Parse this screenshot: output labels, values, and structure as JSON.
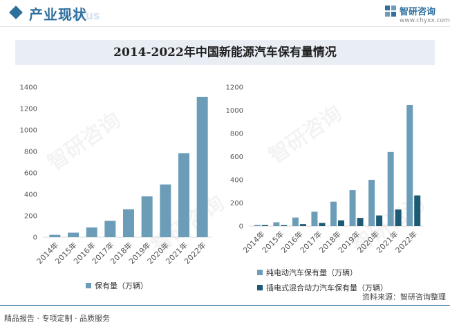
{
  "header": {
    "title": "产业现状",
    "ghost_text": "Status",
    "logo_name": "智研咨询",
    "logo_url": "www.chyxx.com"
  },
  "source": "资料来源：智研咨询整理",
  "footer": {
    "tagline": "精品报告 · 专项定制 · 品质服务"
  },
  "colors": {
    "primary": "#2e6f9e",
    "bar_light": "#6c9db8",
    "bar_dark": "#1d5a73"
  },
  "watermark": "智研咨询",
  "chart_data": [
    {
      "type": "bar",
      "title": "2014-2022年中国新能源汽车保有量情况",
      "categories": [
        "2014年",
        "2015年",
        "2016年",
        "2017年",
        "2018年",
        "2019年",
        "2020年",
        "2021年",
        "2022年"
      ],
      "series": [
        {
          "name": "保有量（万辆）",
          "values": [
            22,
            42,
            91,
            153,
            261,
            381,
            492,
            784,
            1310
          ],
          "color": "#6c9db8"
        }
      ],
      "ylim": [
        0,
        1400
      ],
      "yticks": [
        "0",
        "200",
        "400",
        "600",
        "800",
        "1000",
        "1200",
        "1400"
      ],
      "grid": false,
      "legend": "bottom"
    },
    {
      "type": "bar",
      "categories": [
        "2014年",
        "2015年",
        "2016年",
        "2017年",
        "2018年",
        "2019年",
        "2020年",
        "2021年",
        "2022年"
      ],
      "series": [
        {
          "name": "纯电动汽车保有量（万辆）",
          "values": [
            11,
            33,
            74,
            125,
            211,
            310,
            400,
            640,
            1045
          ],
          "color": "#6c9db8"
        },
        {
          "name": "插电式混合动力汽车保有量（万辆）",
          "values": [
            10,
            9,
            17,
            28,
            50,
            71,
            92,
            144,
            265
          ],
          "color": "#1d5a73"
        }
      ],
      "ylim": [
        0,
        1200
      ],
      "yticks": [
        "0",
        "200",
        "400",
        "600",
        "800",
        "1000",
        "1200"
      ],
      "grid": false,
      "legend": "bottom"
    }
  ]
}
